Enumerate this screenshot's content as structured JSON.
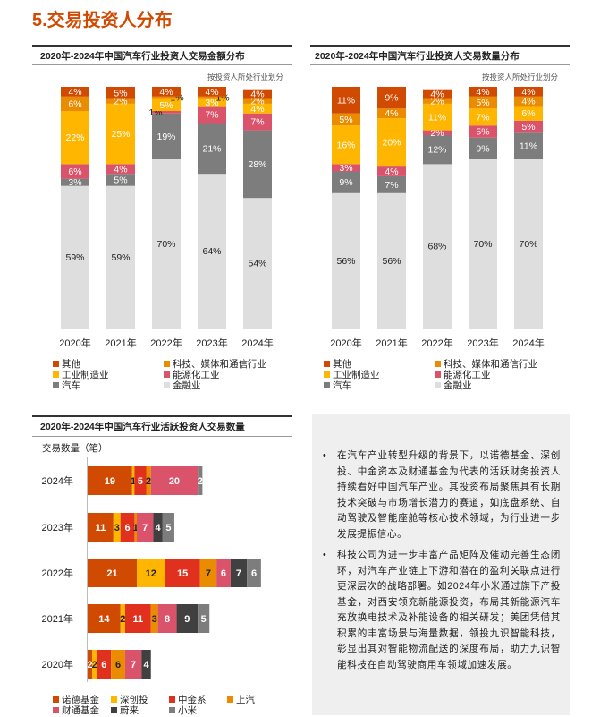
{
  "page_title": "5.交易投资人分布",
  "colors": {
    "其他": "#d04a02",
    "科技、媒体和通信行业": "#eb8c00",
    "工业制造业": "#ffb600",
    "能源化工业": "#db536a",
    "汽车": "#7d7d7d",
    "金融业": "#dedede",
    "诺德基金": "#d04a02",
    "深创投": "#ffb600",
    "中金系": "#e0301e",
    "上汽": "#eb8c00",
    "财通基金": "#db536a",
    "蔚来": "#404040",
    "小米": "#7d7d7d"
  },
  "chart_data": [
    {
      "type": "bar",
      "stacked": true,
      "title": "2020年-2024年中国汽车行业投资人交易金额分布",
      "note": "按投资人所处行业划分",
      "categories": [
        "2020年",
        "2021年",
        "2022年",
        "2023年",
        "2024年"
      ],
      "series": [
        {
          "name": "金融业",
          "values": [
            59,
            59,
            70,
            64,
            54
          ],
          "labels": [
            "59%",
            "59%",
            "70%",
            "64%",
            "54%"
          ]
        },
        {
          "name": "汽车",
          "values": [
            3,
            5,
            19,
            21,
            28
          ],
          "labels": [
            "3%",
            "5%",
            "19%",
            "21%",
            "28%"
          ]
        },
        {
          "name": "能源化工业",
          "values": [
            6,
            4,
            1,
            7,
            7
          ],
          "labels": [
            "6%",
            "4%",
            "1%",
            "7%",
            "7%"
          ]
        },
        {
          "name": "工业制造业",
          "values": [
            22,
            25,
            5,
            3,
            4
          ],
          "labels": [
            "22%",
            "25%",
            "5%",
            "3%",
            "4%"
          ]
        },
        {
          "name": "科技、媒体和通信行业",
          "values": [
            6,
            2,
            1,
            1,
            2
          ],
          "labels": [
            "6%",
            "2%",
            "1%",
            "1%",
            "2%"
          ]
        },
        {
          "name": "其他",
          "values": [
            4,
            5,
            4,
            4,
            4
          ],
          "labels": [
            "4%",
            "5%",
            "4%",
            "4%",
            "4%"
          ]
        }
      ],
      "legend": [
        "其他",
        "科技、媒体和通信行业",
        "工业制造业",
        "能源化工业",
        "汽车",
        "金融业"
      ],
      "ylim": [
        0,
        100
      ]
    },
    {
      "type": "bar",
      "stacked": true,
      "title": "2020年-2024年中国汽车行业投资人交易数量分布",
      "note": "按投资人所处行业划分",
      "categories": [
        "2020年",
        "2021年",
        "2022年",
        "2023年",
        "2024年"
      ],
      "series": [
        {
          "name": "金融业",
          "values": [
            56,
            56,
            68,
            70,
            70
          ],
          "labels": [
            "56%",
            "56%",
            "68%",
            "70%",
            "70%"
          ]
        },
        {
          "name": "汽车",
          "values": [
            9,
            7,
            12,
            9,
            11
          ],
          "labels": [
            "9%",
            "7%",
            "12%",
            "9%",
            "11%"
          ]
        },
        {
          "name": "能源化工业",
          "values": [
            3,
            4,
            2,
            5,
            5
          ],
          "labels": [
            "3%",
            "4%",
            "2%",
            "5%",
            "5%"
          ]
        },
        {
          "name": "工业制造业",
          "values": [
            16,
            20,
            11,
            7,
            6
          ],
          "labels": [
            "16%",
            "20%",
            "11%",
            "7%",
            "6%"
          ]
        },
        {
          "name": "科技、媒体和通信行业",
          "values": [
            5,
            4,
            2,
            5,
            4
          ],
          "labels": [
            "5%",
            "4%",
            "2%",
            "5%",
            "4%"
          ]
        },
        {
          "name": "其他",
          "values": [
            11,
            9,
            4,
            4,
            4
          ],
          "labels": [
            "11%",
            "9%",
            "4%",
            "4%",
            "4%"
          ]
        }
      ],
      "legend": [
        "其他",
        "科技、媒体和通信行业",
        "工业制造业",
        "能源化工业",
        "汽车",
        "金融业"
      ],
      "ylim": [
        0,
        100
      ]
    },
    {
      "type": "bar",
      "orientation": "horizontal",
      "stacked": true,
      "title": "2020年-2024年中国汽车行业活跃投资人交易数量",
      "ylabel": "交易数量（笔）",
      "categories": [
        "2024年",
        "2023年",
        "2022年",
        "2021年",
        "2020年"
      ],
      "series": [
        {
          "name": "诺德基金",
          "values": [
            19,
            11,
            21,
            14,
            2
          ]
        },
        {
          "name": "深创投",
          "values": [
            1,
            3,
            12,
            2,
            2
          ]
        },
        {
          "name": "中金系",
          "values": [
            5,
            6,
            15,
            11,
            6
          ]
        },
        {
          "name": "上汽",
          "values": [
            2,
            1,
            7,
            3,
            6
          ]
        },
        {
          "name": "财通基金",
          "values": [
            20,
            7,
            6,
            8,
            7
          ]
        },
        {
          "name": "蔚来",
          "values": [
            0,
            4,
            7,
            9,
            4
          ]
        },
        {
          "name": "小米",
          "values": [
            2,
            5,
            6,
            5,
            0
          ]
        }
      ],
      "legend": [
        "诺德基金",
        "深创投",
        "中金系",
        "上汽",
        "财通基金",
        "蔚来",
        "小米"
      ]
    }
  ],
  "text_bullets": [
    "在汽车产业转型升级的背景下，以诺德基金、深创投、中金资本及财通基金为代表的活跃财务投资人持续看好中国汽车产业。其投资布局聚焦具有长期技术突破与市场增长潜力的赛道，如底盘系统、自动驾驶及智能座舱等核心技术领域，为行业进一步发展提振信心。",
    "科技公司为进一步丰富产品矩阵及催动完善生态闭环，对汽车产业链上下游和潜在的盈利关联点进行更深层次的战略部署。如2024年小米通过旗下产投基金，对西安领充新能源投资，布局其新能源汽车充放换电技术及补能设备的相关研发；美团凭借其积累的丰富场景与海量数据，领投九识智能科技，彰显出其对智能物流配送的深度布局，助力九识智能科技在自动驾驶商用车领域加速发展。"
  ],
  "bullet_symbol": "•"
}
